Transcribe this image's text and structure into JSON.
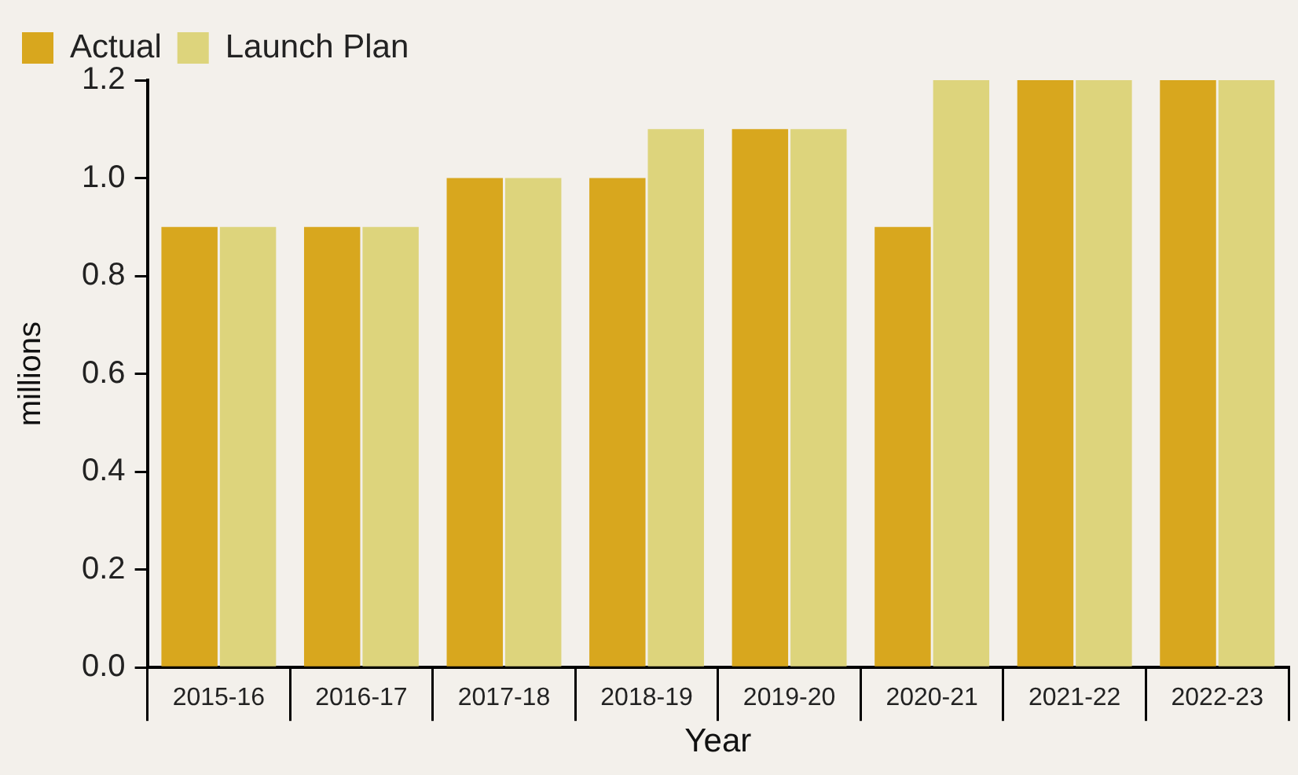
{
  "chart_data": {
    "type": "bar",
    "xlabel": "Year",
    "ylabel": "millions",
    "categories": [
      "2015-16",
      "2016-17",
      "2017-18",
      "2018-19",
      "2019-20",
      "2020-21",
      "2021-22",
      "2022-23"
    ],
    "series": [
      {
        "name": "Actual",
        "color": "#d8a71e",
        "values": [
          0.9,
          0.9,
          1.0,
          1.0,
          1.1,
          0.9,
          1.2,
          1.2
        ]
      },
      {
        "name": "Launch Plan",
        "color": "#ddd47c",
        "values": [
          0.9,
          0.9,
          1.0,
          1.1,
          1.1,
          1.2,
          1.2,
          1.2
        ]
      }
    ],
    "ylim": [
      0,
      1.2
    ],
    "yticks": [
      {
        "value": 0,
        "label": "0.0"
      },
      {
        "value": 0.2,
        "label": "0.2"
      },
      {
        "value": 0.4,
        "label": "0.4"
      },
      {
        "value": 0.6,
        "label": "0.6"
      },
      {
        "value": 0.8,
        "label": "0.8"
      },
      {
        "value": 1,
        "label": "1.0"
      },
      {
        "value": 1.2,
        "label": "1.2"
      }
    ],
    "grid": false,
    "legend": "top left"
  }
}
